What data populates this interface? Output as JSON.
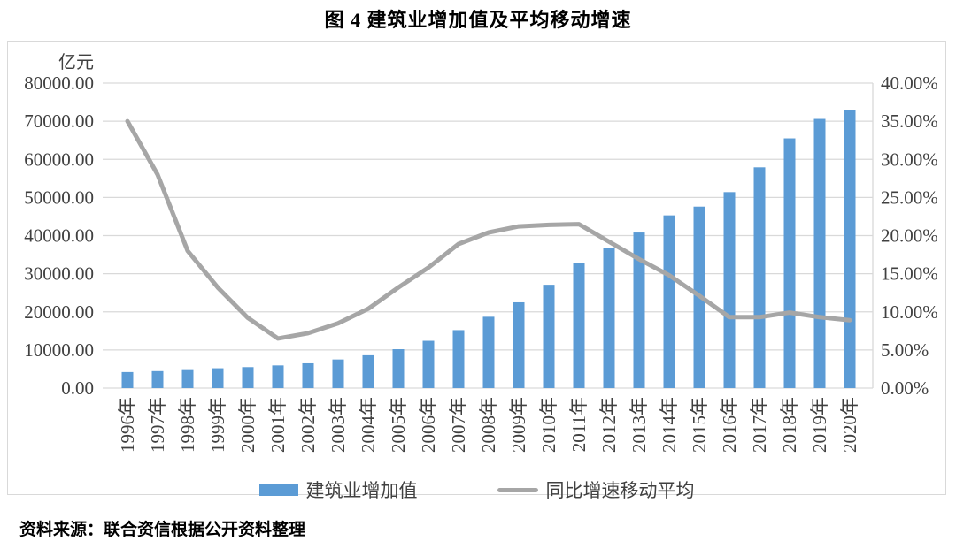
{
  "title": "图 4  建筑业增加值及平均移动增速",
  "source_note": "资料来源：联合资信根据公开资料整理",
  "unit_label": "亿元",
  "colors": {
    "bar": "#5B9BD5",
    "line": "#A6A6A6",
    "grid": "#D9D9D9",
    "axis_text": "#404040",
    "box_border": "#D9D9D9"
  },
  "legend": [
    {
      "label": "建筑业增加值",
      "swatch": "bar-swatch"
    },
    {
      "label": "同比增速移动平均",
      "swatch": "line-swatch"
    }
  ],
  "chart_data": {
    "type": "bar",
    "subtype": "bar+line combo, dual axis",
    "title": "图 4  建筑业增加值及平均移动增速",
    "categories": [
      "1996年",
      "1997年",
      "1998年",
      "1999年",
      "2000年",
      "2001年",
      "2002年",
      "2003年",
      "2004年",
      "2005年",
      "2006年",
      "2007年",
      "2008年",
      "2009年",
      "2010年",
      "2011年",
      "2012年",
      "2013年",
      "2014年",
      "2015年",
      "2016年",
      "2017年",
      "2018年",
      "2019年",
      "2020年"
    ],
    "series": [
      {
        "name": "建筑业增加值",
        "type": "bar",
        "axis": "left",
        "unit": "亿元",
        "values": [
          4200,
          4450,
          4950,
          5200,
          5500,
          5950,
          6500,
          7500,
          8600,
          10200,
          12400,
          15200,
          18700,
          22500,
          27100,
          32800,
          36800,
          40800,
          45300,
          47600,
          51400,
          57900,
          65500,
          70600,
          72900
        ]
      },
      {
        "name": "同比增速移动平均",
        "type": "line",
        "axis": "right",
        "unit": "%",
        "values": [
          35.0,
          28.0,
          18.0,
          13.2,
          9.2,
          6.5,
          7.2,
          8.5,
          10.4,
          13.2,
          15.8,
          18.9,
          20.4,
          21.2,
          21.4,
          21.5,
          19.2,
          16.9,
          14.8,
          12.1,
          9.3,
          9.3,
          9.9,
          9.3,
          8.9
        ]
      }
    ],
    "left_axis": {
      "unit": "亿元",
      "min": 0,
      "max": 80000,
      "ticks": [
        "80000.00",
        "70000.00",
        "60000.00",
        "50000.00",
        "40000.00",
        "30000.00",
        "20000.00",
        "10000.00",
        "0.00"
      ]
    },
    "right_axis": {
      "unit": "%",
      "min": 0,
      "max": 40,
      "ticks": [
        "40.00%",
        "35.00%",
        "30.00%",
        "25.00%",
        "20.00%",
        "15.00%",
        "10.00%",
        "5.00%",
        "0.00%"
      ]
    },
    "grid": true,
    "legend_position": "bottom"
  }
}
